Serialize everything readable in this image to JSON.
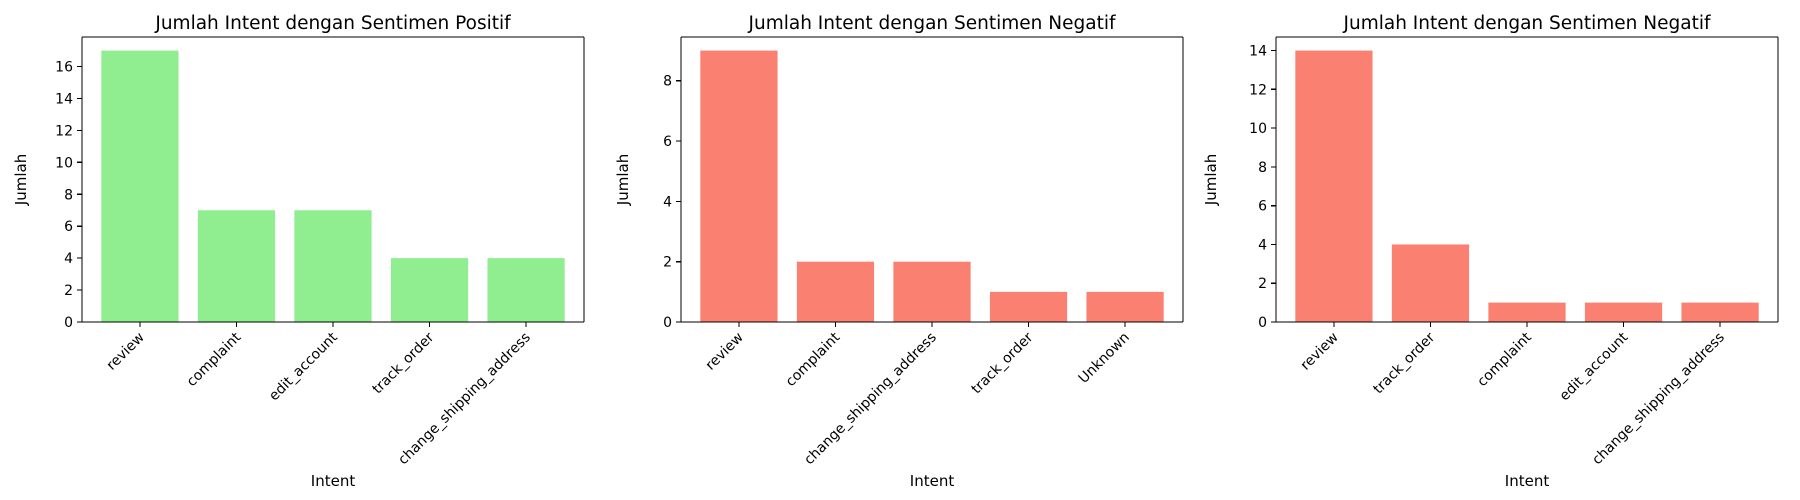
{
  "chart_data": [
    {
      "type": "bar",
      "title": "Jumlah Intent dengan Sentimen Positif",
      "xlabel": "Intent",
      "ylabel": "Jumlah",
      "categories": [
        "review",
        "complaint",
        "edit_account",
        "track_order",
        "change_shipping_address"
      ],
      "values": [
        17,
        7,
        7,
        4,
        4
      ],
      "ylim": [
        0,
        17.85
      ],
      "yticks": [
        0,
        2,
        4,
        6,
        8,
        10,
        12,
        14,
        16
      ],
      "bar_color": "#90ee90",
      "grid": false,
      "legend": "none"
    },
    {
      "type": "bar",
      "title": "Jumlah Intent dengan Sentimen Negatif",
      "xlabel": "Intent",
      "ylabel": "Jumlah",
      "categories": [
        "review",
        "complaint",
        "change_shipping_address",
        "track_order",
        "Unknown"
      ],
      "values": [
        9,
        2,
        2,
        1,
        1
      ],
      "ylim": [
        0,
        9.45
      ],
      "yticks": [
        0,
        2,
        4,
        6,
        8
      ],
      "bar_color": "#fa8072",
      "grid": false,
      "legend": "none"
    },
    {
      "type": "bar",
      "title": "Jumlah Intent dengan Sentimen Negatif",
      "xlabel": "Intent",
      "ylabel": "Jumlah",
      "categories": [
        "review",
        "track_order",
        "complaint",
        "edit_account",
        "change_shipping_address"
      ],
      "values": [
        14,
        4,
        1,
        1,
        1
      ],
      "ylim": [
        0,
        14.7
      ],
      "yticks": [
        0,
        2,
        4,
        6,
        8,
        10,
        12,
        14
      ],
      "bar_color": "#fa8072",
      "grid": false,
      "legend": "none"
    }
  ]
}
